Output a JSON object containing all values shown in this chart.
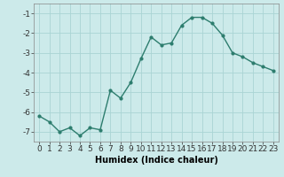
{
  "x": [
    0,
    1,
    2,
    3,
    4,
    5,
    6,
    7,
    8,
    9,
    10,
    11,
    12,
    13,
    14,
    15,
    16,
    17,
    18,
    19,
    20,
    21,
    22,
    23
  ],
  "y": [
    -6.2,
    -6.5,
    -7.0,
    -6.8,
    -7.2,
    -6.8,
    -6.9,
    -4.9,
    -5.3,
    -4.5,
    -3.3,
    -2.2,
    -2.6,
    -2.5,
    -1.6,
    -1.2,
    -1.2,
    -1.5,
    -2.1,
    -3.0,
    -3.2,
    -3.5,
    -3.7,
    -3.9
  ],
  "line_color": "#2d7d6e",
  "marker": "o",
  "markersize": 2.0,
  "linewidth": 1.0,
  "xlabel": "Humidex (Indice chaleur)",
  "xlim": [
    -0.5,
    23.5
  ],
  "ylim": [
    -7.5,
    -0.5
  ],
  "yticks": [
    -7,
    -6,
    -5,
    -4,
    -3,
    -2,
    -1
  ],
  "xticks": [
    0,
    1,
    2,
    3,
    4,
    5,
    6,
    7,
    8,
    9,
    10,
    11,
    12,
    13,
    14,
    15,
    16,
    17,
    18,
    19,
    20,
    21,
    22,
    23
  ],
  "bg_color": "#cceaea",
  "grid_color": "#aad4d4",
  "xlabel_fontsize": 7,
  "tick_fontsize": 6.5
}
